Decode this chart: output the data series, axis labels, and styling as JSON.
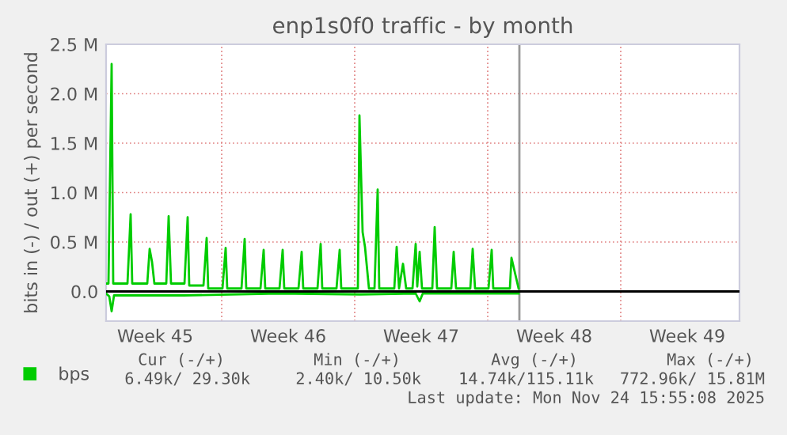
{
  "chart_data": {
    "type": "line",
    "title": "enp1s0f0 traffic - by month",
    "ylabel": "bits in (-) / out (+) per second",
    "xlim": [
      "2025-11-02T22:00",
      "2025-12-06T06:00"
    ],
    "ylim": [
      -300000,
      2500000
    ],
    "xticks": [
      {
        "value": "2025-11-05T12:00",
        "label": "Week 45"
      },
      {
        "value": "2025-11-09",
        "label": null
      },
      {
        "value": "2025-11-12T12:00",
        "label": "Week 46"
      },
      {
        "value": "2025-11-16",
        "label": null
      },
      {
        "value": "2025-11-19T12:00",
        "label": "Week 47"
      },
      {
        "value": "2025-11-23",
        "label": null
      },
      {
        "value": "2025-11-26T12:00",
        "label": "Week 48"
      },
      {
        "value": "2025-11-30",
        "label": null
      },
      {
        "value": "2025-12-03T12:00",
        "label": "Week 49"
      }
    ],
    "yticks": [
      {
        "value": 0,
        "label": "0.0"
      },
      {
        "value": 500000,
        "label": "0.5 M"
      },
      {
        "value": 1000000,
        "label": "1.0 M"
      },
      {
        "value": 1500000,
        "label": "1.5 M"
      },
      {
        "value": 2000000,
        "label": "2.0 M"
      },
      {
        "value": 2500000,
        "label": "2.5 M"
      }
    ],
    "grid": true,
    "legend": "bottom",
    "marker": "none",
    "line_style": "solid",
    "ref_lines": [
      {
        "axis": "y",
        "value": 0,
        "color": "#000000"
      },
      {
        "axis": "x",
        "value": "2025-11-24T16:00",
        "color": "#999999"
      }
    ],
    "series": [
      {
        "name": "bps",
        "color": "#00cc00",
        "x": [
          "2025-11-02T22:00",
          "2025-11-03T01:00",
          "2025-11-03T05:00",
          "2025-11-03T07:00",
          "2025-11-04T01:00",
          "2025-11-04T05:00",
          "2025-11-04T07:00",
          "2025-11-05T02:00",
          "2025-11-05T05:00",
          "2025-11-05T08:00",
          "2025-11-05T11:00",
          "2025-11-06T02:00",
          "2025-11-06T05:00",
          "2025-11-06T08:00",
          "2025-11-07T01:00",
          "2025-11-07T05:00",
          "2025-11-07T07:00",
          "2025-11-08T01:00",
          "2025-11-08T05:00",
          "2025-11-08T07:00",
          "2025-11-09T01:00",
          "2025-11-09T05:00",
          "2025-11-09T07:00",
          "2025-11-10T01:00",
          "2025-11-10T05:00",
          "2025-11-10T07:00",
          "2025-11-11T01:00",
          "2025-11-11T05:00",
          "2025-11-11T07:00",
          "2025-11-12T01:00",
          "2025-11-12T05:00",
          "2025-11-12T07:00",
          "2025-11-13T01:00",
          "2025-11-13T05:00",
          "2025-11-13T07:00",
          "2025-11-14T01:00",
          "2025-11-14T05:00",
          "2025-11-14T07:00",
          "2025-11-15T01:00",
          "2025-11-15T05:00",
          "2025-11-15T07:00",
          "2025-11-16T04:00",
          "2025-11-16T06:00",
          "2025-11-16T10:00",
          "2025-11-16T13:00",
          "2025-11-16T18:00",
          "2025-11-17T01:00",
          "2025-11-17T05:00",
          "2025-11-17T07:00",
          "2025-11-18T02:00",
          "2025-11-18T05:00",
          "2025-11-18T08:00",
          "2025-11-18T13:00",
          "2025-11-18T17:00",
          "2025-11-19T01:00",
          "2025-11-19T05:00",
          "2025-11-19T07:00",
          "2025-11-19T10:00",
          "2025-11-19T13:00",
          "2025-11-20T02:00",
          "2025-11-20T05:00",
          "2025-11-20T08:00",
          "2025-11-21T02:00",
          "2025-11-21T05:00",
          "2025-11-21T08:00",
          "2025-11-22T02:00",
          "2025-11-22T05:00",
          "2025-11-22T08:00",
          "2025-11-23T01:00",
          "2025-11-23T05:00",
          "2025-11-23T07:00",
          "2025-11-24T04:00",
          "2025-11-24T06:00",
          "2025-11-24T15:00"
        ],
        "values": [
          80000,
          80000,
          2300000,
          80000,
          80000,
          780000,
          80000,
          80000,
          430000,
          300000,
          80000,
          80000,
          760000,
          80000,
          80000,
          750000,
          60000,
          60000,
          540000,
          30000,
          30000,
          440000,
          30000,
          30000,
          530000,
          30000,
          30000,
          420000,
          30000,
          30000,
          420000,
          30000,
          30000,
          400000,
          30000,
          30000,
          480000,
          30000,
          30000,
          420000,
          30000,
          30000,
          1780000,
          600000,
          450000,
          30000,
          30000,
          1030000,
          30000,
          30000,
          450000,
          30000,
          280000,
          30000,
          30000,
          480000,
          50000,
          400000,
          30000,
          30000,
          650000,
          30000,
          30000,
          400000,
          30000,
          30000,
          430000,
          30000,
          30000,
          420000,
          30000,
          30000,
          340000,
          30000
        ]
      },
      {
        "color": "#00cc00",
        "x": [
          "2025-11-02T22:00",
          "2025-11-03T02:00",
          "2025-11-03T05:00",
          "2025-11-03T08:00",
          "2025-11-07T00:00",
          "2025-11-12T00:00",
          "2025-11-16T07:00",
          "2025-11-19T05:00",
          "2025-11-19T10:00",
          "2025-11-19T14:00",
          "2025-11-24T15:00"
        ],
        "values": [
          -20000,
          -50000,
          -200000,
          -40000,
          -40000,
          -20000,
          -30000,
          -20000,
          -100000,
          -20000,
          -20000
        ]
      }
    ],
    "annotations": [
      "Cur (-/+)",
      "Min (-/+)",
      "Avg (-/+)",
      "Max (-/+)",
      "6.49k/ 29.30k",
      "2.40k/ 10.50k",
      "14.74k/115.11k",
      "772.96k/ 15.81M",
      "Last update: Mon Nov 24 15:55:08 2025"
    ]
  }
}
